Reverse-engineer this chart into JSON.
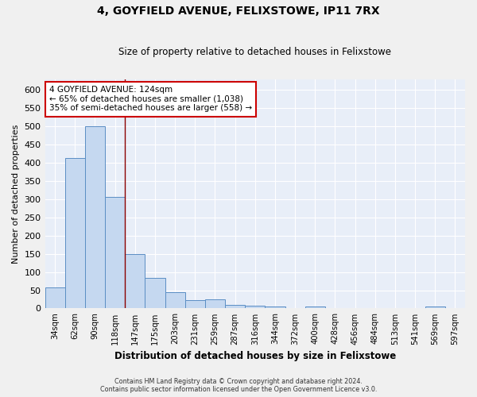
{
  "title": "4, GOYFIELD AVENUE, FELIXSTOWE, IP11 7RX",
  "subtitle": "Size of property relative to detached houses in Felixstowe",
  "xlabel": "Distribution of detached houses by size in Felixstowe",
  "ylabel": "Number of detached properties",
  "footer_line1": "Contains HM Land Registry data © Crown copyright and database right 2024.",
  "footer_line2": "Contains public sector information licensed under the Open Government Licence v3.0.",
  "bar_labels": [
    "34sqm",
    "62sqm",
    "90sqm",
    "118sqm",
    "147sqm",
    "175sqm",
    "203sqm",
    "231sqm",
    "259sqm",
    "287sqm",
    "316sqm",
    "344sqm",
    "372sqm",
    "400sqm",
    "428sqm",
    "456sqm",
    "484sqm",
    "513sqm",
    "541sqm",
    "569sqm",
    "597sqm"
  ],
  "bar_values": [
    57,
    413,
    500,
    307,
    149,
    84,
    44,
    23,
    25,
    10,
    8,
    5,
    0,
    5,
    0,
    0,
    0,
    0,
    0,
    5,
    0
  ],
  "bar_color": "#c5d8f0",
  "bar_edge_color": "#5b8ec4",
  "bg_color": "#e8eef8",
  "grid_color": "#ffffff",
  "vline_x": 3.5,
  "vline_color": "#8b0000",
  "annotation_text": "4 GOYFIELD AVENUE: 124sqm\n← 65% of detached houses are smaller (1,038)\n35% of semi-detached houses are larger (558) →",
  "annotation_box_color": "#ffffff",
  "annotation_box_edge_color": "#cc0000",
  "ylim": [
    0,
    630
  ],
  "yticks": [
    0,
    50,
    100,
    150,
    200,
    250,
    300,
    350,
    400,
    450,
    500,
    550,
    600
  ]
}
